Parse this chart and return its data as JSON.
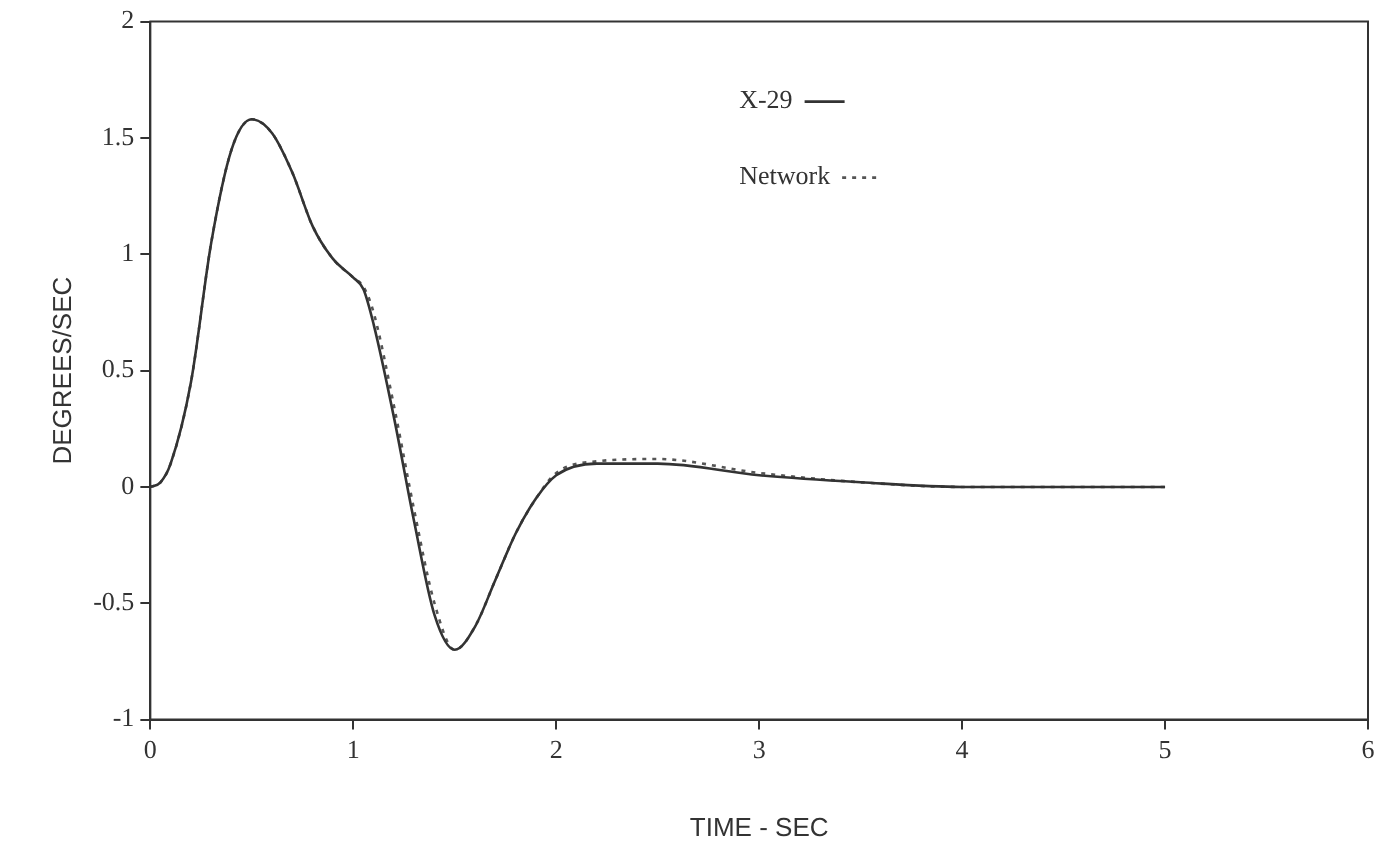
{
  "chart_data": {
    "type": "line",
    "xlabel": "TIME - SEC",
    "ylabel": "DEGREES/SEC",
    "xlim": [
      0,
      6
    ],
    "xticks": [
      0,
      1,
      2,
      3,
      4,
      5,
      6
    ],
    "ylim": [
      -1,
      2
    ],
    "yticks": [
      -1,
      -0.5,
      0,
      0.5,
      1,
      1.5,
      2
    ],
    "grid": false,
    "legend": "top",
    "marker": "none",
    "series": [
      {
        "name": "X-29",
        "color": "#333333",
        "line_style": "solid",
        "x": [
          0,
          0.05,
          0.1,
          0.2,
          0.3,
          0.4,
          0.5,
          0.6,
          0.7,
          0.8,
          0.9,
          1.0,
          1.05,
          1.1,
          1.2,
          1.3,
          1.4,
          1.5,
          1.6,
          1.7,
          1.8,
          1.9,
          2.0,
          2.2,
          2.5,
          3.0,
          3.5,
          4.0,
          4.5,
          5.0
        ],
        "values": [
          0,
          0.02,
          0.1,
          0.45,
          1.05,
          1.45,
          1.58,
          1.52,
          1.35,
          1.12,
          0.98,
          0.9,
          0.85,
          0.7,
          0.3,
          -0.15,
          -0.55,
          -0.7,
          -0.6,
          -0.4,
          -0.2,
          -0.05,
          0.05,
          0.1,
          0.1,
          0.05,
          0.02,
          0,
          0,
          0
        ]
      },
      {
        "name": "Network",
        "color": "#555555",
        "line_style": "dotted",
        "x": [
          0,
          0.05,
          0.1,
          0.2,
          0.3,
          0.4,
          0.5,
          0.6,
          0.7,
          0.8,
          0.9,
          1.0,
          1.05,
          1.1,
          1.2,
          1.3,
          1.4,
          1.5,
          1.6,
          1.7,
          1.8,
          1.9,
          2.0,
          2.2,
          2.5,
          3.0,
          3.5,
          4.0,
          4.5,
          5.0
        ],
        "values": [
          0,
          0.02,
          0.1,
          0.45,
          1.05,
          1.45,
          1.58,
          1.52,
          1.35,
          1.12,
          0.98,
          0.9,
          0.86,
          0.75,
          0.35,
          -0.1,
          -0.5,
          -0.7,
          -0.6,
          -0.4,
          -0.2,
          -0.05,
          0.06,
          0.11,
          0.12,
          0.06,
          0.02,
          0,
          0,
          0
        ]
      }
    ]
  }
}
